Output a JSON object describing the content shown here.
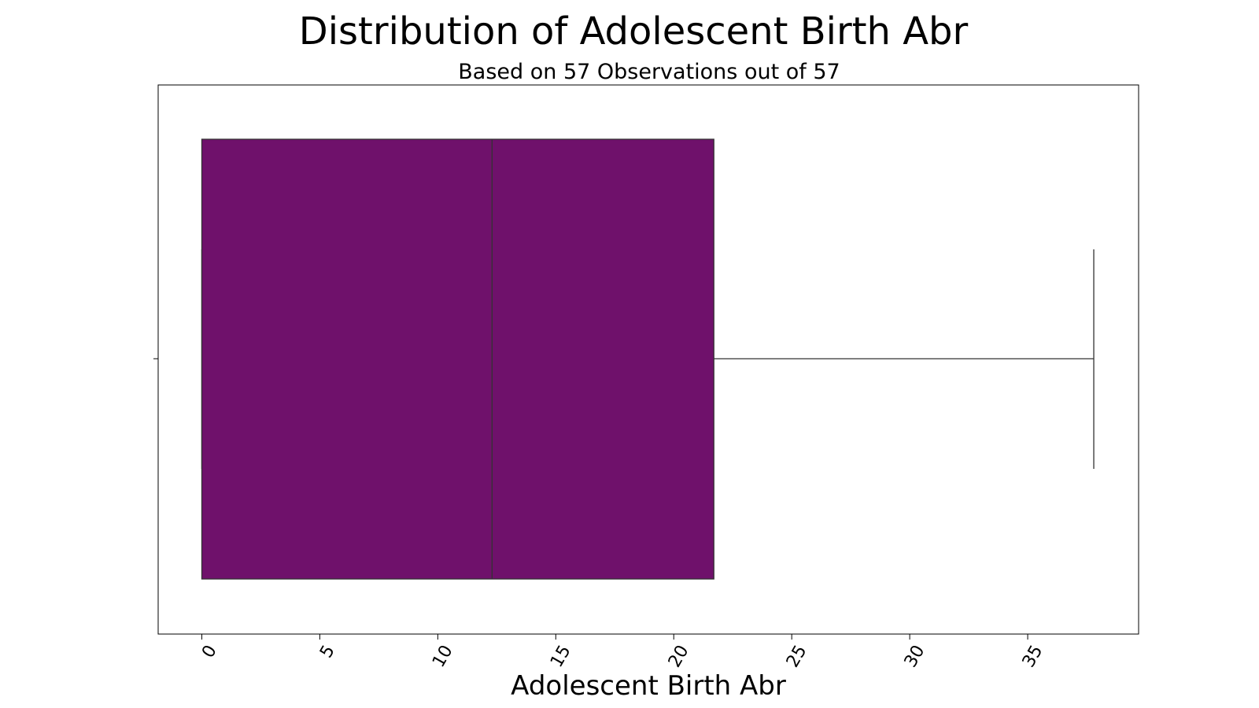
{
  "chart_data": {
    "type": "box",
    "title": "Distribution of Adolescent Birth Abr",
    "subtitle": "Based on 57 Observations out of 57",
    "xlabel": "Adolescent Birth Abr",
    "ylabel": "",
    "xlim": [
      -1.85,
      39.7
    ],
    "xticks": [
      0,
      5,
      10,
      15,
      20,
      25,
      30,
      35
    ],
    "box": {
      "whisker_low": 0,
      "q1": 0,
      "median": 12.3,
      "q3": 21.7,
      "whisker_high": 37.8
    },
    "grid": false,
    "legend": "none",
    "colors": {
      "box_fill": "#6f116b",
      "line": "#333333"
    }
  }
}
